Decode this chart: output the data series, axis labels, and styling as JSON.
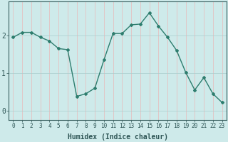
{
  "xlabel": "Humidex (Indice chaleur)",
  "x": [
    0,
    1,
    2,
    3,
    4,
    5,
    6,
    7,
    8,
    9,
    10,
    11,
    12,
    13,
    14,
    15,
    16,
    17,
    18,
    19,
    20,
    21,
    22,
    23
  ],
  "y": [
    1.95,
    2.08,
    2.08,
    1.95,
    1.85,
    1.65,
    1.62,
    0.38,
    0.45,
    0.6,
    1.35,
    2.05,
    2.05,
    2.28,
    2.3,
    2.6,
    2.25,
    1.95,
    1.6,
    1.02,
    0.55,
    0.88,
    0.45,
    0.22
  ],
  "line_color": "#2e7d6e",
  "marker": "D",
  "marker_size": 2.0,
  "line_width": 1.0,
  "bg_color": "#ceeaea",
  "plot_bg_color": "#ceeaea",
  "grid_color_h": "#aacece",
  "grid_color_v": "#e8b8b8",
  "axis_color": "#3a6060",
  "tick_color": "#2e5555",
  "label_color": "#2e5555",
  "ylim": [
    -0.25,
    2.9
  ],
  "yticks": [
    0,
    1,
    2
  ],
  "xticks": [
    0,
    1,
    2,
    3,
    4,
    5,
    6,
    7,
    8,
    9,
    10,
    11,
    12,
    13,
    14,
    15,
    16,
    17,
    18,
    19,
    20,
    21,
    22,
    23
  ],
  "tick_fontsize": 5.5,
  "xlabel_fontsize": 7.0
}
